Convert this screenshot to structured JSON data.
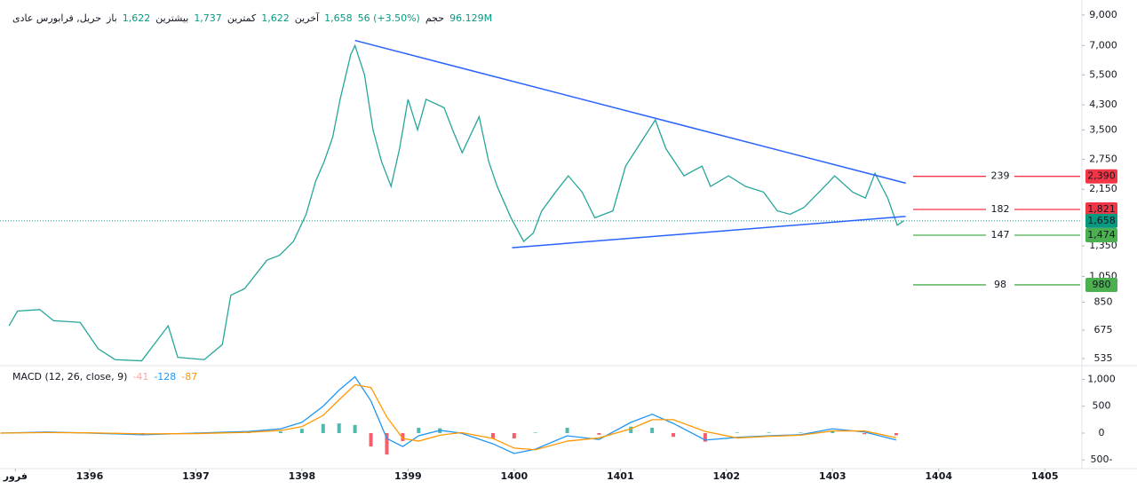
{
  "header": {
    "symbol": "حریل, فرابورس عادی",
    "stats": [
      {
        "label": "باز",
        "value": "1,622"
      },
      {
        "label": "بیشترین",
        "value": "1,737"
      },
      {
        "label": "کمترین",
        "value": "1,622"
      },
      {
        "label": "آخرین",
        "value": "1,658"
      }
    ],
    "change": "56 (+3.50%)",
    "volume_label": "حجم",
    "volume": "96.129M"
  },
  "chart_data": [
    {
      "type": "line",
      "log_scale": true,
      "color": "#26a69a",
      "x": [
        1395.24,
        1395.32,
        1395.53,
        1395.66,
        1395.91,
        1396.08,
        1396.24,
        1396.49,
        1396.74,
        1396.83,
        1397.08,
        1397.25,
        1397.33,
        1397.46,
        1397.67,
        1397.79,
        1397.92,
        1398.04,
        1398.13,
        1398.21,
        1398.29,
        1398.36,
        1398.46,
        1398.5,
        1398.59,
        1398.67,
        1398.75,
        1398.84,
        1398.92,
        1399.0,
        1399.09,
        1399.17,
        1399.34,
        1399.42,
        1399.51,
        1399.67,
        1399.76,
        1399.84,
        1399.97,
        1400.09,
        1400.18,
        1400.26,
        1400.39,
        1400.51,
        1400.64,
        1400.76,
        1400.93,
        1401.05,
        1401.18,
        1401.33,
        1401.43,
        1401.6,
        1401.77,
        1401.85,
        1402.02,
        1402.18,
        1402.35,
        1402.48,
        1402.6,
        1402.73,
        1402.9,
        1403.02,
        1403.19,
        1403.31,
        1403.4,
        1403.52,
        1403.61,
        1403.67
      ],
      "values": [
        700,
        790,
        800,
        730,
        720,
        580,
        530,
        525,
        700,
        540,
        530,
        600,
        900,
        950,
        1200,
        1250,
        1400,
        1750,
        2300,
        2700,
        3300,
        4500,
        6500,
        7000,
        5500,
        3500,
        2700,
        2200,
        3000,
        4500,
        3500,
        4500,
        4200,
        3500,
        2900,
        3900,
        2700,
        2200,
        1700,
        1400,
        1500,
        1800,
        2100,
        2400,
        2100,
        1700,
        1800,
        2600,
        3100,
        3800,
        3000,
        2400,
        2600,
        2200,
        2400,
        2200,
        2100,
        1800,
        1750,
        1850,
        2150,
        2400,
        2100,
        2000,
        2450,
        2000,
        1600,
        1658
      ],
      "xlim": [
        1395.155,
        1405.35
      ],
      "xticks": [
        {
          "value": 1395.3,
          "label": "فرور"
        },
        1396,
        1397,
        1398,
        1399,
        1400,
        1401,
        1402,
        1403,
        1404,
        1405
      ],
      "ylim": [
        512,
        9600
      ],
      "yticks": [
        {
          "value": 9000,
          "label": "9,000"
        },
        {
          "value": 7000,
          "label": "7,000"
        },
        {
          "value": 5500,
          "label": "5,500"
        },
        {
          "value": 4300,
          "label": "4,300"
        },
        {
          "value": 3500,
          "label": "3,500"
        },
        {
          "value": 2750,
          "label": "2,750"
        },
        {
          "value": 2150,
          "label": "2,150"
        },
        {
          "value": 1350,
          "label": "1,350"
        },
        {
          "value": 1050,
          "label": "1,050"
        },
        850,
        675,
        535
      ],
      "trendlines": [
        {
          "color": "#2962ff",
          "x": [
            1398.5,
            1403.69
          ],
          "values": [
            7300,
            2260
          ]
        },
        {
          "color": "#2962ff",
          "x": [
            1399.98,
            1403.69
          ],
          "values": [
            1330,
            1720
          ]
        }
      ],
      "levels": [
        {
          "name": "239",
          "value": 2390,
          "value_label": "2,390",
          "color": "#f23645"
        },
        {
          "name": "182",
          "value": 1821,
          "value_label": "1,821",
          "color": "#f23645"
        },
        {
          "name": "147",
          "value": 1474,
          "value_label": "1,474",
          "color": "#4caf50"
        },
        {
          "name": "98",
          "value": 980,
          "value_label": "980",
          "color": "#4caf50"
        }
      ],
      "last_price": {
        "value": 1658,
        "label": "1,658",
        "color": "#089981"
      }
    },
    {
      "type": "macd",
      "title": "MACD (12, 26, close, 9)",
      "x": [
        1395.16,
        1395.6,
        1396.0,
        1396.5,
        1397.0,
        1397.5,
        1397.8,
        1398.0,
        1398.2,
        1398.35,
        1398.5,
        1398.65,
        1398.8,
        1398.95,
        1399.1,
        1399.3,
        1399.5,
        1399.8,
        1400.0,
        1400.2,
        1400.5,
        1400.8,
        1401.1,
        1401.3,
        1401.5,
        1401.8,
        1402.1,
        1402.4,
        1402.7,
        1403.0,
        1403.3,
        1403.6
      ],
      "histogram": {
        "current": -41,
        "color": "#f7a9a7",
        "up_color": "#26a69a",
        "down_color": "#f23645",
        "values": [
          0,
          10,
          -5,
          -15,
          10,
          15,
          30,
          80,
          170,
          180,
          150,
          -250,
          -400,
          -150,
          100,
          90,
          -10,
          -100,
          -100,
          10,
          100,
          -30,
          120,
          100,
          -70,
          -160,
          10,
          10,
          10,
          40,
          -20,
          -41
        ]
      },
      "series": [
        {
          "color": "#2196f3",
          "current": -128,
          "values": [
            0,
            20,
            0,
            -30,
            0,
            30,
            80,
            200,
            500,
            800,
            1050,
            600,
            -100,
            -250,
            -50,
            50,
            0,
            -200,
            -380,
            -300,
            -50,
            -120,
            200,
            350,
            180,
            -130,
            -80,
            -50,
            -30,
            80,
            20,
            -128
          ]
        },
        {
          "color": "#ff9800",
          "current": -87,
          "values": [
            0,
            10,
            5,
            -15,
            -10,
            15,
            50,
            120,
            330,
            620,
            900,
            850,
            300,
            -100,
            -150,
            -40,
            10,
            -100,
            -280,
            -310,
            -150,
            -90,
            80,
            250,
            250,
            30,
            -90,
            -60,
            -40,
            40,
            40,
            -87
          ]
        }
      ],
      "ylim": [
        -612,
        1157
      ],
      "yticks": [
        {
          "value": 1000,
          "label": "1,000"
        },
        500,
        0,
        {
          "value": -500,
          "label": "500-"
        }
      ]
    }
  ]
}
